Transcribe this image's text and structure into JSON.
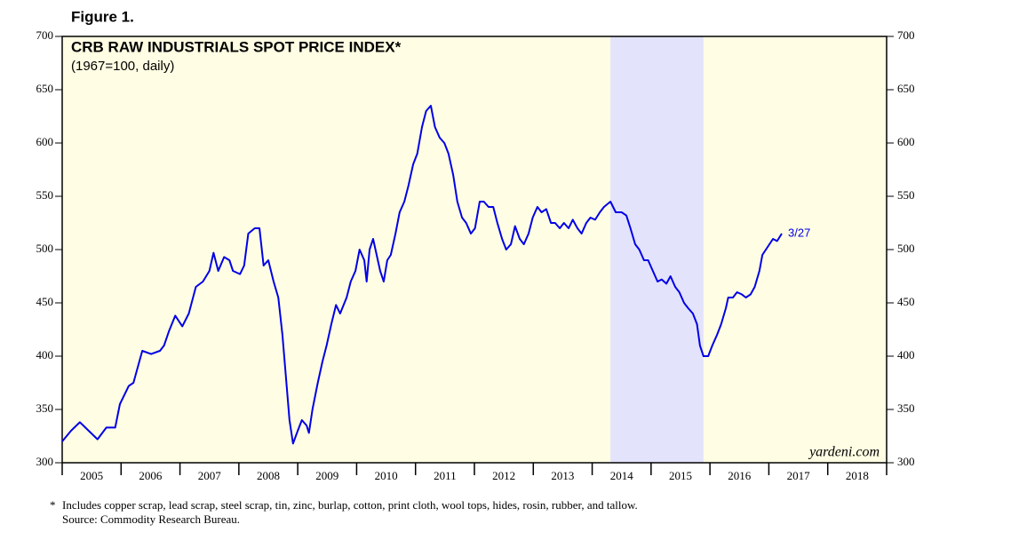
{
  "chart_data": {
    "type": "line",
    "figure_label": "Figure 1.",
    "title": "CRB RAW INDUSTRIALS SPOT PRICE INDEX*",
    "subtitle": "(1967=100, daily)",
    "annotation": "3/27",
    "watermark": "yardeni.com",
    "footnote_marker": "*",
    "footnote": "Includes copper scrap, lead scrap, steel scrap, tin, zinc, burlap, cotton, print cloth, wool tops, hides, rosin, rubber, and tallow.",
    "source": "Source: Commodity Research Bureau.",
    "xlim": [
      2005,
      2019
    ],
    "xticks": [
      2005,
      2006,
      2007,
      2008,
      2009,
      2010,
      2011,
      2012,
      2013,
      2014,
      2015,
      2016,
      2017,
      2018
    ],
    "ylim": [
      300,
      700
    ],
    "yticks": [
      300,
      350,
      400,
      450,
      500,
      550,
      600,
      650,
      700
    ],
    "shaded_range": [
      2014.31,
      2015.89
    ],
    "series": [
      {
        "color": "#0000e6",
        "x": [
          2005.0,
          2005.15,
          2005.3,
          2005.45,
          2005.6,
          2005.75,
          2005.9,
          2005.98,
          2006.13,
          2006.21,
          2006.36,
          2006.51,
          2006.66,
          2006.73,
          2006.81,
          2006.92,
          2007.04,
          2007.15,
          2007.27,
          2007.39,
          2007.5,
          2007.57,
          2007.65,
          2007.75,
          2007.84,
          2007.9,
          2008.02,
          2008.09,
          2008.16,
          2008.27,
          2008.35,
          2008.42,
          2008.5,
          2008.59,
          2008.67,
          2008.74,
          2008.8,
          2008.86,
          2008.92,
          2009.0,
          2009.07,
          2009.15,
          2009.19,
          2009.25,
          2009.34,
          2009.42,
          2009.49,
          2009.57,
          2009.65,
          2009.72,
          2009.83,
          2009.9,
          2009.98,
          2010.05,
          2010.13,
          2010.17,
          2010.22,
          2010.28,
          2010.32,
          2010.4,
          2010.46,
          2010.52,
          2010.58,
          2010.66,
          2010.73,
          2010.81,
          2010.88,
          2010.96,
          2011.03,
          2011.11,
          2011.18,
          2011.26,
          2011.33,
          2011.41,
          2011.49,
          2011.56,
          2011.64,
          2011.71,
          2011.79,
          2011.86,
          2011.94,
          2012.01,
          2012.09,
          2012.16,
          2012.24,
          2012.32,
          2012.39,
          2012.47,
          2012.54,
          2012.62,
          2012.69,
          2012.77,
          2012.84,
          2012.92,
          2012.99,
          2013.07,
          2013.14,
          2013.22,
          2013.3,
          2013.37,
          2013.45,
          2013.52,
          2013.6,
          2013.67,
          2013.75,
          2013.82,
          2013.9,
          2013.97,
          2014.05,
          2014.13,
          2014.2,
          2014.31,
          2014.4,
          2014.5,
          2014.58,
          2014.65,
          2014.73,
          2014.8,
          2014.88,
          2014.95,
          2015.03,
          2015.11,
          2015.18,
          2015.26,
          2015.33,
          2015.41,
          2015.48,
          2015.56,
          2015.63,
          2015.71,
          2015.78,
          2015.83,
          2015.89,
          2015.97,
          2016.04,
          2016.12,
          2016.19,
          2016.27,
          2016.31,
          2016.39,
          2016.46,
          2016.54,
          2016.61,
          2016.69,
          2016.76,
          2016.84,
          2016.89,
          2016.95,
          2017.01,
          2017.07,
          2017.14,
          2017.22
        ],
        "values": [
          320,
          330,
          338,
          330,
          322,
          333,
          333,
          355,
          372,
          375,
          405,
          402,
          405,
          410,
          423,
          438,
          428,
          440,
          465,
          470,
          480,
          497,
          480,
          493,
          490,
          480,
          477,
          485,
          515,
          520,
          520,
          485,
          490,
          470,
          455,
          420,
          380,
          340,
          318,
          330,
          340,
          335,
          328,
          350,
          375,
          395,
          410,
          430,
          448,
          440,
          455,
          470,
          480,
          500,
          490,
          470,
          500,
          510,
          500,
          480,
          470,
          490,
          495,
          515,
          535,
          545,
          560,
          580,
          590,
          615,
          630,
          635,
          615,
          605,
          600,
          590,
          570,
          545,
          530,
          525,
          515,
          520,
          545,
          545,
          540,
          540,
          525,
          510,
          500,
          505,
          522,
          510,
          505,
          515,
          530,
          540,
          535,
          538,
          525,
          525,
          520,
          525,
          520,
          528,
          520,
          515,
          525,
          530,
          528,
          535,
          540,
          545,
          535,
          535,
          532,
          520,
          505,
          500,
          490,
          490,
          480,
          470,
          472,
          468,
          475,
          465,
          460,
          450,
          445,
          440,
          430,
          410,
          400,
          400,
          410,
          420,
          430,
          445,
          455,
          455,
          460,
          458,
          455,
          458,
          465,
          480,
          495,
          500,
          505,
          510,
          508,
          515
        ]
      }
    ]
  }
}
